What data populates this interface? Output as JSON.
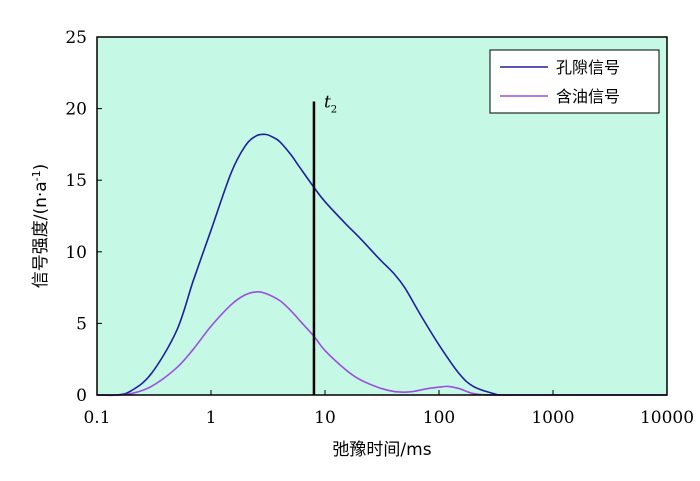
{
  "chart_data": {
    "type": "line",
    "xlabel": "弛豫时间/ms",
    "ylabel": "信号强度/(n·a",
    "ylabel_sup": "-1",
    "ylabel_close": ")",
    "x_scale": "log",
    "xlim": [
      0.1,
      10000
    ],
    "ylim": [
      0,
      25
    ],
    "x_ticks": [
      0.1,
      1,
      10,
      100,
      1000,
      10000
    ],
    "x_tick_labels": [
      "0.1",
      "1",
      "10",
      "100",
      "1000",
      "10000"
    ],
    "y_ticks": [
      0,
      5,
      10,
      15,
      20,
      25
    ],
    "y_tick_labels": [
      "0",
      "5",
      "10",
      "15",
      "20",
      "25"
    ],
    "background": "#c6f8e6",
    "grid": false,
    "legend_position": "top-right",
    "series": [
      {
        "name": "孔隙信号",
        "color": "#1f1fa0",
        "x": [
          0.1,
          0.15,
          0.2,
          0.3,
          0.5,
          0.7,
          1.0,
          1.5,
          2.0,
          2.5,
          3.0,
          3.5,
          4.0,
          5.0,
          6.0,
          8.0,
          10,
          15,
          20,
          30,
          40,
          50,
          70,
          100,
          150,
          200,
          300,
          350,
          500,
          1000,
          10000
        ],
        "y": [
          0,
          0,
          0.3,
          1.5,
          4.5,
          8.0,
          11.5,
          15.5,
          17.4,
          18.1,
          18.2,
          18.0,
          17.7,
          16.8,
          15.9,
          14.5,
          13.5,
          12.0,
          11.0,
          9.5,
          8.5,
          7.5,
          5.5,
          3.5,
          1.5,
          0.6,
          0.1,
          0,
          0,
          0,
          0
        ]
      },
      {
        "name": "含油信号",
        "color": "#9a4fe0",
        "x": [
          0.1,
          0.15,
          0.2,
          0.3,
          0.5,
          0.7,
          1.0,
          1.5,
          2.0,
          2.5,
          3.0,
          4.0,
          5.0,
          6.0,
          8.0,
          10,
          15,
          20,
          30,
          40,
          50,
          60,
          80,
          100,
          120,
          150,
          200,
          300,
          1000,
          10000
        ],
        "y": [
          0,
          0,
          0.1,
          0.6,
          1.9,
          3.2,
          4.8,
          6.3,
          7.0,
          7.2,
          7.1,
          6.6,
          5.9,
          5.2,
          4.1,
          3.1,
          1.8,
          1.1,
          0.5,
          0.25,
          0.2,
          0.25,
          0.45,
          0.55,
          0.6,
          0.45,
          0.1,
          0,
          0,
          0
        ]
      }
    ],
    "annotations": [
      {
        "type": "vline",
        "x": 8,
        "y_top": 20.5,
        "label": "t",
        "label_sub": "2"
      }
    ]
  }
}
